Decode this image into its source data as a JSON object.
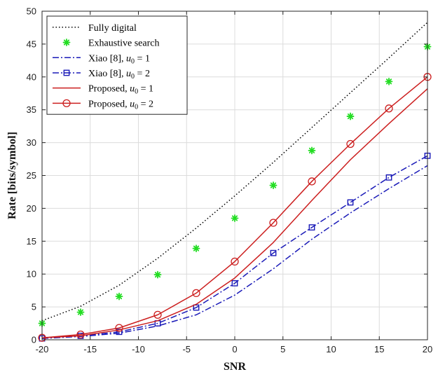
{
  "chart_data": {
    "type": "line",
    "title": "",
    "xlabel": "SNR",
    "ylabel": "Rate [bits/symbol]",
    "xlim": [
      -20,
      20
    ],
    "ylim": [
      0,
      50
    ],
    "grid": true,
    "legend_position": "top-left",
    "xticks": [
      -20,
      -15,
      -10,
      -5,
      0,
      5,
      10,
      15,
      20
    ],
    "yticks": [
      0,
      5,
      10,
      15,
      20,
      25,
      30,
      35,
      40,
      45,
      50
    ],
    "x": [
      -20,
      -16,
      -12,
      -8,
      -4,
      0,
      4,
      8,
      12,
      16,
      20
    ],
    "series": [
      {
        "name": "Fully digital",
        "style": "dotted",
        "color": "#000000",
        "marker": "none",
        "values": [
          2.9,
          5.1,
          8.3,
          12.4,
          17.0,
          21.9,
          27.0,
          32.3,
          37.6,
          42.9,
          48.3
        ]
      },
      {
        "name": "Exhaustive search",
        "style": "none",
        "color": "#22dd22",
        "marker": "asterisk",
        "values": [
          2.5,
          4.2,
          6.6,
          9.9,
          13.9,
          18.5,
          23.5,
          28.8,
          34.0,
          39.3,
          44.6
        ]
      },
      {
        "name": "Xiao [8], u0 = 1",
        "label_parts": [
          "Xiao [8], ",
          "u",
          "0",
          " = 1"
        ],
        "style": "dashdot",
        "color": "#1a1ab8",
        "marker": "none",
        "values": [
          0.2,
          0.5,
          1.0,
          2.1,
          3.8,
          6.8,
          10.8,
          15.3,
          19.3,
          23.0,
          26.5
        ]
      },
      {
        "name": "Xiao [8], u0 = 2",
        "label_parts": [
          "Xiao [8], ",
          "u",
          "0",
          " = 2"
        ],
        "style": "dashdot",
        "color": "#1a1ab8",
        "marker": "square",
        "values": [
          0.2,
          0.6,
          1.2,
          2.5,
          4.9,
          8.6,
          13.2,
          17.1,
          20.9,
          24.7,
          28.0
        ]
      },
      {
        "name": "Proposed, u0 = 1",
        "label_parts": [
          "Proposed, ",
          "u",
          "0",
          " = 1"
        ],
        "style": "solid",
        "color": "#cc1f1f",
        "marker": "none",
        "values": [
          0.3,
          0.6,
          1.5,
          2.9,
          5.4,
          9.4,
          14.8,
          21.2,
          27.4,
          32.9,
          38.2
        ]
      },
      {
        "name": "Proposed, u0 = 2",
        "label_parts": [
          "Proposed, ",
          "u",
          "0",
          " = 2"
        ],
        "style": "solid",
        "color": "#cc1f1f",
        "marker": "circle",
        "values": [
          0.3,
          0.8,
          1.8,
          3.8,
          7.1,
          11.9,
          17.8,
          24.1,
          29.8,
          35.2,
          40.0
        ]
      }
    ]
  }
}
